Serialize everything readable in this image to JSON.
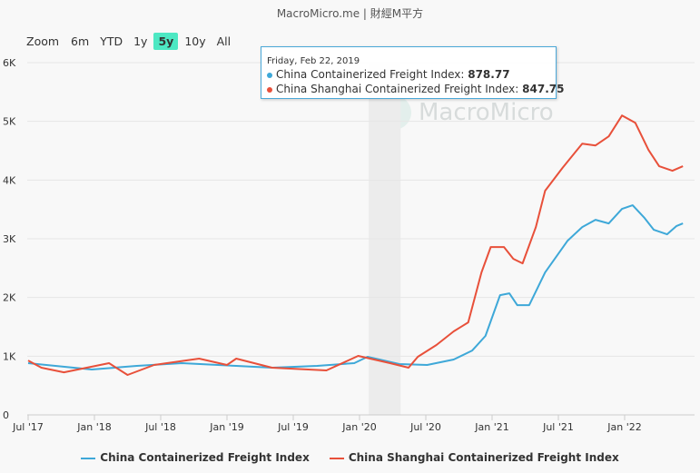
{
  "credit": "MacroMicro.me | 財經M平方",
  "range_selector": {
    "label": "Zoom",
    "buttons": [
      "6m",
      "YTD",
      "1y",
      "5y",
      "10y",
      "All"
    ],
    "selected": "5y"
  },
  "watermark": "MacroMicro",
  "tooltip": {
    "date": "Friday, Feb 22, 2019",
    "rows": [
      {
        "name": "China Containerized Freight Index: ",
        "value": "878.77"
      },
      {
        "name": "China Shanghai Containerized Freight Index: ",
        "value": "847.75"
      }
    ]
  },
  "chart_data": {
    "type": "line",
    "title": "",
    "x_unit": "decimal year",
    "xlim": [
      2017.5,
      2022.44
    ],
    "ylim": [
      0,
      6000
    ],
    "y_ticks": [
      "0",
      "1K",
      "2K",
      "3K",
      "4K",
      "5K",
      "6K"
    ],
    "x_ticks": [
      "Jul '17",
      "Jan '18",
      "Jul '18",
      "Jan '19",
      "Jul '19",
      "Jan '20",
      "Jul '20",
      "Jan '21",
      "Jul '21",
      "Jan '22"
    ],
    "shaded_range": [
      2020.07,
      2020.31
    ],
    "legend": "bottom-center",
    "series": [
      {
        "name": "China Containerized Freight Index",
        "color": "#3ea8d8",
        "points": [
          [
            2017.5,
            881
          ],
          [
            2017.98,
            773
          ],
          [
            2018.32,
            835
          ],
          [
            2018.66,
            881
          ],
          [
            2019.07,
            835
          ],
          [
            2019.34,
            804
          ],
          [
            2019.68,
            835
          ],
          [
            2019.96,
            881
          ],
          [
            2020.06,
            989
          ],
          [
            2020.3,
            866
          ],
          [
            2020.51,
            850
          ],
          [
            2020.71,
            943
          ],
          [
            2020.85,
            1097
          ],
          [
            2020.95,
            1345
          ],
          [
            2021.06,
            2040
          ],
          [
            2021.13,
            2071
          ],
          [
            2021.19,
            1870
          ],
          [
            2021.28,
            1870
          ],
          [
            2021.4,
            2427
          ],
          [
            2021.57,
            2968
          ],
          [
            2021.68,
            3199
          ],
          [
            2021.78,
            3323
          ],
          [
            2021.88,
            3261
          ],
          [
            2021.98,
            3509
          ],
          [
            2022.06,
            3570
          ],
          [
            2022.15,
            3354
          ],
          [
            2022.22,
            3153
          ],
          [
            2022.32,
            3076
          ],
          [
            2022.39,
            3215
          ],
          [
            2022.44,
            3261
          ]
        ]
      },
      {
        "name": "China Shanghai Containerized Freight Index",
        "color": "#e8503a",
        "points": [
          [
            2017.5,
            927
          ],
          [
            2017.6,
            804
          ],
          [
            2017.77,
            726
          ],
          [
            2018.11,
            881
          ],
          [
            2018.25,
            680
          ],
          [
            2018.45,
            850
          ],
          [
            2018.79,
            958
          ],
          [
            2019.0,
            850
          ],
          [
            2019.07,
            958
          ],
          [
            2019.34,
            804
          ],
          [
            2019.75,
            757
          ],
          [
            2019.99,
            1005
          ],
          [
            2020.23,
            881
          ],
          [
            2020.37,
            804
          ],
          [
            2020.44,
            989
          ],
          [
            2020.58,
            1190
          ],
          [
            2020.71,
            1422
          ],
          [
            2020.82,
            1576
          ],
          [
            2020.92,
            2427
          ],
          [
            2020.99,
            2859
          ],
          [
            2021.09,
            2859
          ],
          [
            2021.16,
            2658
          ],
          [
            2021.23,
            2581
          ],
          [
            2021.33,
            3199
          ],
          [
            2021.4,
            3818
          ],
          [
            2021.53,
            4204
          ],
          [
            2021.68,
            4621
          ],
          [
            2021.78,
            4590
          ],
          [
            2021.88,
            4745
          ],
          [
            2021.98,
            5100
          ],
          [
            2022.08,
            4977
          ],
          [
            2022.18,
            4513
          ],
          [
            2022.26,
            4235
          ],
          [
            2022.36,
            4158
          ],
          [
            2022.44,
            4235
          ]
        ]
      }
    ]
  }
}
